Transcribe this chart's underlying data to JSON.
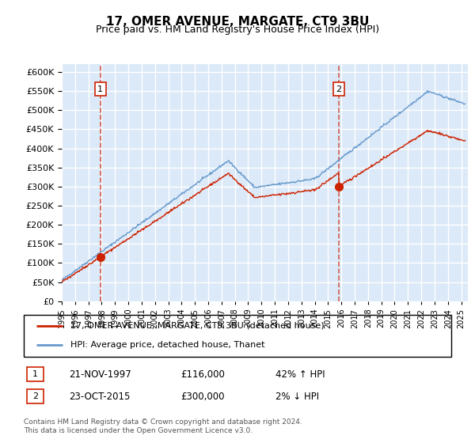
{
  "title": "17, OMER AVENUE, MARGATE, CT9 3BU",
  "subtitle": "Price paid vs. HM Land Registry's House Price Index (HPI)",
  "ytick_values": [
    0,
    50000,
    100000,
    150000,
    200000,
    250000,
    300000,
    350000,
    400000,
    450000,
    500000,
    550000,
    600000
  ],
  "xlim_start": 1995.0,
  "xlim_end": 2025.5,
  "bg_color": "#dce9f8",
  "grid_color": "white",
  "hpi_color": "#6699cc",
  "price_color": "#cc2200",
  "sale1_date": 1997.9,
  "sale1_price": 116000,
  "sale2_date": 2015.82,
  "sale2_price": 300000,
  "legend_line1": "17, OMER AVENUE, MARGATE, CT9 3BU (detached house)",
  "legend_line2": "HPI: Average price, detached house, Thanet",
  "footnote": "Contains HM Land Registry data © Crown copyright and database right 2024.\nThis data is licensed under the Open Government Licence v3.0.",
  "table_row1": [
    "1",
    "21-NOV-1997",
    "£116,000",
    "42% ↑ HPI"
  ],
  "table_row2": [
    "2",
    "23-OCT-2015",
    "£300,000",
    "2% ↓ HPI"
  ]
}
